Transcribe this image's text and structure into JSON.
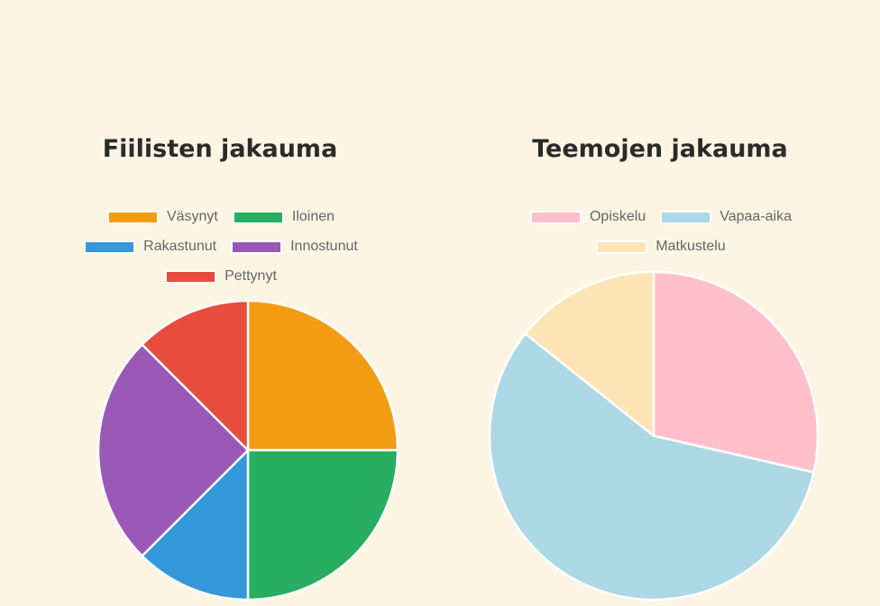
{
  "chart_data": [
    {
      "type": "pie",
      "title": "Fiilisten jakauma",
      "categories": [
        "Väsynyt",
        "Iloinen",
        "Rakastunut",
        "Innostunut",
        "Pettynyt"
      ],
      "values": [
        2,
        2,
        1,
        2,
        1
      ],
      "colors": [
        "#f39c12",
        "#27ae60",
        "#3498db",
        "#9b59b6",
        "#e74c3c"
      ],
      "legend_position": "top"
    },
    {
      "type": "pie",
      "title": "Teemojen jakauma",
      "categories": [
        "Opiskelu",
        "Vapaa-aika",
        "Matkustelu"
      ],
      "values": [
        2,
        4,
        1
      ],
      "colors": [
        "#ffc0cb",
        "#add8e6",
        "#ffe4b5"
      ],
      "legend_position": "top"
    }
  ]
}
